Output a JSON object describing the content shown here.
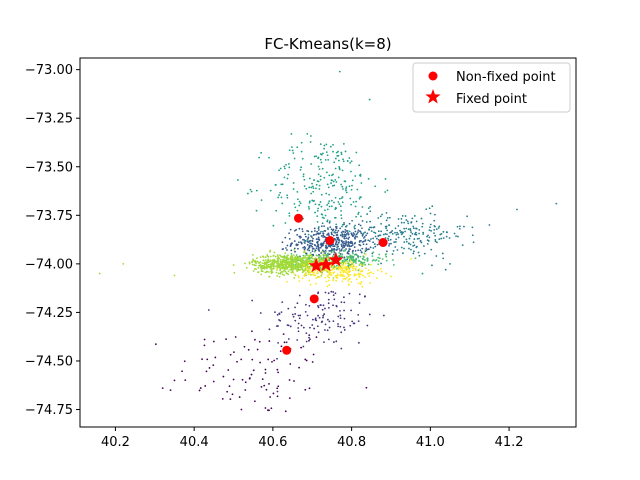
{
  "chart_data": {
    "type": "scatter",
    "title": "FC-Kmeans(k=8)",
    "xlabel": "",
    "ylabel": "",
    "xlim": [
      40.11,
      41.37
    ],
    "ylim": [
      -74.84,
      -72.94
    ],
    "xticks": [
      40.2,
      40.4,
      40.6,
      40.8,
      41.0,
      41.2
    ],
    "xtick_labels": [
      "40.2",
      "40.4",
      "40.6",
      "40.8",
      "41.0",
      "41.2"
    ],
    "yticks": [
      -73.0,
      -73.25,
      -73.5,
      -73.75,
      -74.0,
      -74.25,
      -74.5,
      -74.75
    ],
    "ytick_labels": [
      "−73.00",
      "−73.25",
      "−73.50",
      "−73.75",
      "−74.00",
      "−74.25",
      "−74.50",
      "−74.75"
    ],
    "grid": false,
    "legend": {
      "location": "top-right",
      "entries": [
        {
          "label": "Non-fixed point",
          "marker": "circle",
          "color": "#ff0000"
        },
        {
          "label": "Fixed point",
          "marker": "star",
          "color": "#ff0000"
        }
      ]
    },
    "cluster_colors": [
      "#440154",
      "#46327e",
      "#365c8d",
      "#277f8e",
      "#1fa187",
      "#4ac16d",
      "#a0da39",
      "#fde725"
    ],
    "clusters": [
      {
        "color": "#440154",
        "center": [
          40.56,
          -74.55
        ],
        "spread": [
          0.1,
          0.12
        ],
        "count": 90
      },
      {
        "color": "#46327e",
        "center": [
          40.72,
          -74.28
        ],
        "spread": [
          0.07,
          0.09
        ],
        "count": 130
      },
      {
        "color": "#365c8d",
        "center": [
          40.75,
          -73.89
        ],
        "spread": [
          0.05,
          0.04
        ],
        "count": 450
      },
      {
        "color": "#277f8e",
        "center": [
          40.93,
          -73.85
        ],
        "spread": [
          0.08,
          0.06
        ],
        "count": 220
      },
      {
        "color": "#1fa187",
        "center": [
          40.73,
          -73.6
        ],
        "spread": [
          0.07,
          0.13
        ],
        "count": 260
      },
      {
        "color": "#4ac16d",
        "center": [
          40.77,
          -73.98
        ],
        "spread": [
          0.06,
          0.02
        ],
        "count": 250
      },
      {
        "color": "#a0da39",
        "center": [
          40.65,
          -74.0
        ],
        "spread": [
          0.05,
          0.025
        ],
        "count": 700
      },
      {
        "color": "#fde725",
        "center": [
          40.77,
          -74.04
        ],
        "spread": [
          0.05,
          0.03
        ],
        "count": 220
      }
    ],
    "outliers": [
      {
        "x": 40.16,
        "y": -74.05,
        "color": "#a0da39"
      },
      {
        "x": 40.22,
        "y": -74.0,
        "color": "#a0da39"
      },
      {
        "x": 40.35,
        "y": -74.06,
        "color": "#a0da39"
      },
      {
        "x": 40.34,
        "y": -74.65,
        "color": "#440154"
      },
      {
        "x": 40.35,
        "y": -74.6,
        "color": "#440154"
      },
      {
        "x": 40.32,
        "y": -74.64,
        "color": "#440154"
      },
      {
        "x": 40.52,
        "y": -74.75,
        "color": "#440154"
      },
      {
        "x": 40.45,
        "y": -74.4,
        "color": "#440154"
      },
      {
        "x": 41.32,
        "y": -73.69,
        "color": "#277f8e"
      },
      {
        "x": 41.22,
        "y": -73.72,
        "color": "#277f8e"
      },
      {
        "x": 41.15,
        "y": -73.8,
        "color": "#277f8e"
      },
      {
        "x": 41.05,
        "y": -74.0,
        "color": "#277f8e"
      },
      {
        "x": 40.77,
        "y": -73.01,
        "color": "#1fa187"
      },
      {
        "x": 40.98,
        "y": -74.05,
        "color": "#1fa187"
      }
    ],
    "non_fixed_points": [
      {
        "x": 40.665,
        "y": -73.765
      },
      {
        "x": 40.745,
        "y": -73.88
      },
      {
        "x": 40.88,
        "y": -73.89
      },
      {
        "x": 40.705,
        "y": -74.18
      },
      {
        "x": 40.635,
        "y": -74.445
      }
    ],
    "fixed_points": [
      {
        "x": 40.71,
        "y": -74.01
      },
      {
        "x": 40.735,
        "y": -74.005
      },
      {
        "x": 40.76,
        "y": -73.98
      }
    ]
  }
}
